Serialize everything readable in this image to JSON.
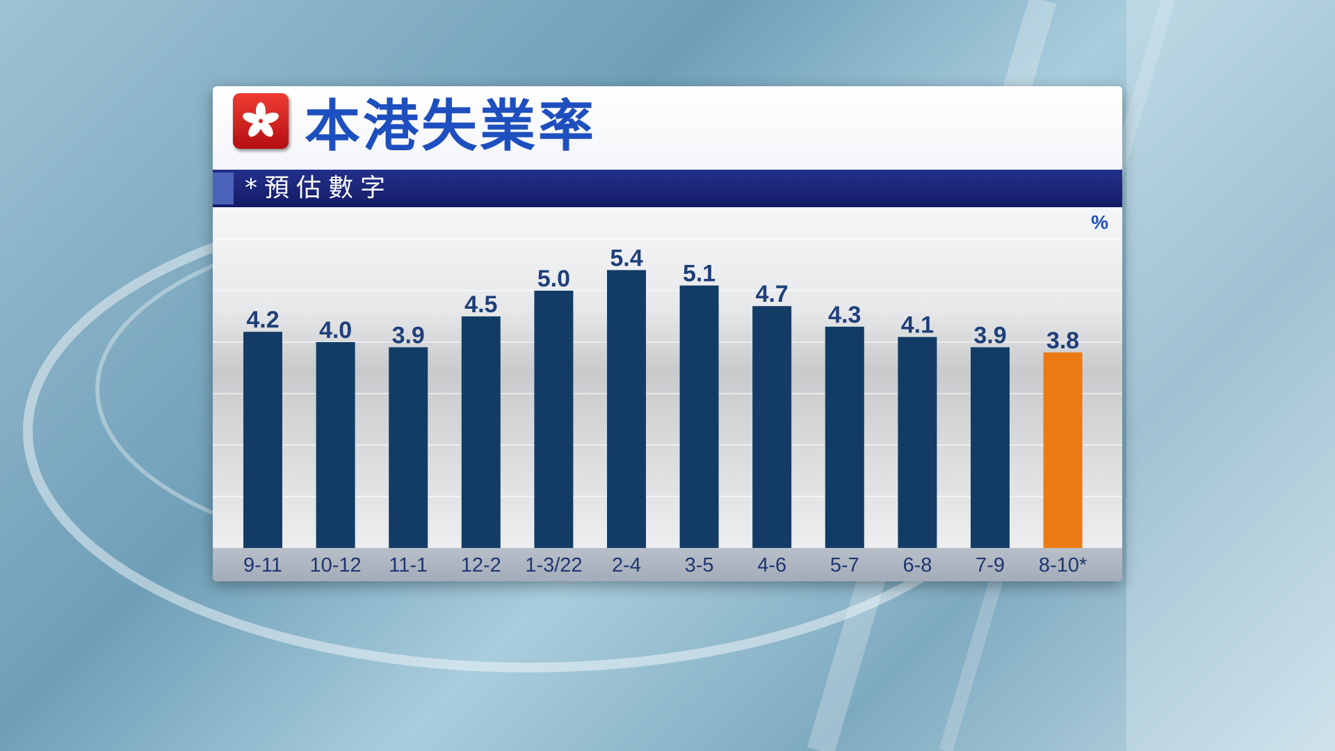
{
  "header": {
    "title": "本港失業率",
    "subtitle": "*預估數字"
  },
  "chart_data": {
    "type": "bar",
    "title": "本港失業率",
    "subtitle": "*預估數字",
    "unit": "%",
    "categories": [
      "9-11",
      "10-12",
      "11-1",
      "12-2",
      "1-3/22",
      "2-4",
      "3-5",
      "4-6",
      "5-7",
      "6-8",
      "7-9",
      "8-10*"
    ],
    "values": [
      4.2,
      4.0,
      3.9,
      4.5,
      5.0,
      5.4,
      5.1,
      4.7,
      4.3,
      4.1,
      3.9,
      3.8
    ],
    "value_labels": [
      "4.2",
      "4.0",
      "3.9",
      "4.5",
      "5.0",
      "5.4",
      "5.1",
      "4.7",
      "4.3",
      "4.1",
      "3.9",
      "3.8"
    ],
    "highlight_index": 11,
    "colors": {
      "bar": "#123c66",
      "highlight": "#ec7a14"
    },
    "ylim": [
      0,
      6
    ],
    "grid": true,
    "legend": "none"
  }
}
